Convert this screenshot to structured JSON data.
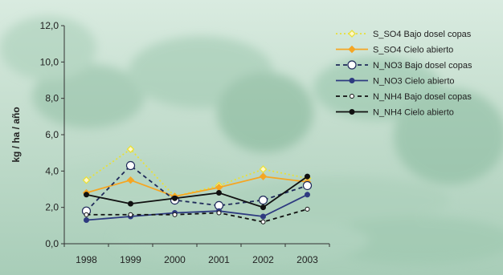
{
  "chart_data": {
    "type": "line",
    "ylabel": "kg / ha / año",
    "xlabel": "",
    "categories": [
      "1998",
      "1999",
      "2000",
      "2001",
      "2002",
      "2003"
    ],
    "y_ticks": [
      "0,0",
      "2,0",
      "4,0",
      "6,0",
      "8,0",
      "10,0",
      "12,0"
    ],
    "ylim": [
      0,
      12
    ],
    "grid": false,
    "legend_position": "top-right",
    "series": [
      {
        "name": "S_SO4 Bajo dosel copas",
        "values": [
          3.5,
          5.2,
          2.6,
          3.2,
          4.1,
          3.6
        ],
        "color": "#e8e03a",
        "dash": "dotted",
        "marker": "diamond-open"
      },
      {
        "name": "S_SO4 Cielo abierto",
        "values": [
          2.8,
          3.5,
          2.6,
          3.1,
          3.7,
          3.4
        ],
        "color": "#f5a623",
        "dash": "solid",
        "marker": "diamond-filled"
      },
      {
        "name": "N_NO3 Bajo dosel copas",
        "values": [
          1.8,
          4.3,
          2.4,
          2.1,
          2.4,
          3.2
        ],
        "color": "#1f2a5a",
        "dash": "dashed",
        "marker": "circle-open"
      },
      {
        "name": "N_NO3 Cielo abierto",
        "values": [
          1.3,
          1.5,
          1.7,
          1.8,
          1.5,
          2.7
        ],
        "color": "#2e3a80",
        "dash": "solid",
        "marker": "circle-filled"
      },
      {
        "name": "N_NH4 Bajo dosel copas",
        "values": [
          1.6,
          1.6,
          1.6,
          1.7,
          1.2,
          1.9
        ],
        "color": "#111111",
        "dash": "dashed",
        "marker": "circle-open-small"
      },
      {
        "name": "N_NH4 Cielo abierto",
        "values": [
          2.7,
          2.2,
          2.5,
          2.8,
          2.0,
          3.7
        ],
        "color": "#111111",
        "dash": "solid",
        "marker": "circle-filled"
      }
    ]
  }
}
